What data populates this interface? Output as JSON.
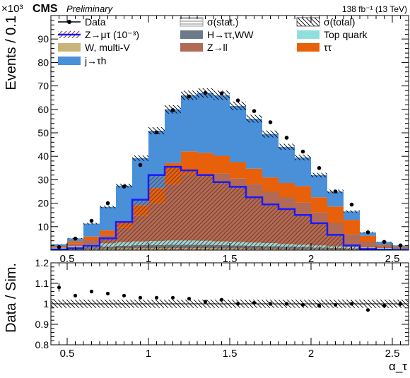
{
  "header": {
    "exponent": "×10³",
    "experiment": "CMS",
    "status": "Preliminary",
    "lumi": "138 fb⁻¹ (13 TeV)"
  },
  "colors": {
    "jtau": "#4a90d9",
    "tautau": "#e8600a",
    "zll": "#b06a55",
    "top": "#90dede",
    "htautau": "#6c7a89",
    "wjets": "#c8b47a",
    "signal": "#1a1aff"
  },
  "chart_data": [
    {
      "type": "bar",
      "subtype": "stacked-histogram",
      "ylabel": "Events / 0.1",
      "xlim": [
        0.4,
        2.6
      ],
      "ylim": [
        0,
        100
      ],
      "yticks": [
        10,
        20,
        30,
        40,
        50,
        60,
        70,
        80,
        90
      ],
      "xticks": [
        0.5,
        1,
        1.5,
        2,
        2.5
      ],
      "x_edges": [
        0.4,
        0.5,
        0.6,
        0.7,
        0.8,
        0.9,
        1.0,
        1.1,
        1.2,
        1.3,
        1.4,
        1.5,
        1.6,
        1.7,
        1.8,
        1.9,
        2.0,
        2.1,
        2.2,
        2.3,
        2.4,
        2.5,
        2.6
      ],
      "legend": [
        {
          "key": "data",
          "label": "Data"
        },
        {
          "key": "stat",
          "label": "σ(stat.)"
        },
        {
          "key": "total",
          "label": "σ(total)"
        },
        {
          "key": "signal",
          "label": "Z→μτ (10⁻³)"
        },
        {
          "key": "htautau",
          "label": "H→ττ,WW"
        },
        {
          "key": "top",
          "label": "Top quark"
        },
        {
          "key": "wjets",
          "label": "W, multi-V"
        },
        {
          "key": "zll",
          "label": "Z→ll"
        },
        {
          "key": "tautau",
          "label": "ττ"
        },
        {
          "key": "jtau",
          "label": "j→τh"
        }
      ],
      "series": [
        {
          "key": "wjets",
          "values": [
            0.2,
            0.3,
            0.5,
            0.6,
            0.7,
            0.8,
            0.8,
            0.8,
            0.8,
            0.8,
            0.7,
            0.7,
            0.6,
            0.6,
            0.5,
            0.4,
            0.4,
            0.3,
            0.3,
            0.2,
            0.2,
            0.1
          ]
        },
        {
          "key": "htautau",
          "values": [
            0.3,
            0.5,
            0.7,
            1.0,
            1.2,
            1.3,
            1.4,
            1.5,
            1.5,
            1.5,
            1.4,
            1.3,
            1.2,
            1.1,
            1.0,
            0.9,
            0.7,
            0.6,
            0.5,
            0.4,
            0.3,
            0.2
          ]
        },
        {
          "key": "top",
          "values": [
            0.5,
            0.8,
            1.0,
            1.3,
            1.5,
            1.6,
            1.7,
            1.8,
            1.8,
            1.7,
            1.6,
            1.5,
            1.4,
            1.3,
            1.1,
            1.0,
            0.9,
            0.7,
            0.6,
            0.5,
            0.4,
            0.3
          ]
        },
        {
          "key": "zll",
          "values": [
            0.5,
            1.2,
            2.0,
            3.5,
            6.0,
            11.0,
            16.0,
            24.0,
            28.0,
            28.0,
            29.0,
            27.0,
            25.0,
            22.0,
            20.0,
            18.0,
            14.0,
            10.0,
            5.5,
            2.5,
            0.6,
            0.3
          ]
        },
        {
          "key": "tautau",
          "values": [
            0.3,
            1.0,
            1.6,
            2.0,
            2.6,
            4.5,
            6.5,
            9.0,
            10.0,
            9.5,
            7.5,
            7.0,
            6.5,
            6.0,
            6.0,
            7.0,
            6.5,
            7.0,
            6.0,
            2.5,
            0.6,
            0.3
          ]
        },
        {
          "key": "jtau",
          "values": [
            0.7,
            1.2,
            5.5,
            10.0,
            15.5,
            20.0,
            24.5,
            22.9,
            23.9,
            25.5,
            25.8,
            24.0,
            21.3,
            18.5,
            15.4,
            12.2,
            9.5,
            6.4,
            3.6,
            1.4,
            1.4,
            0.8
          ]
        }
      ],
      "signal_values": [
        0.3,
        0.8,
        1.8,
        5.0,
        12.0,
        21.5,
        32.0,
        35.5,
        34.0,
        32.0,
        29.0,
        27.0,
        22.5,
        19.5,
        17.5,
        15.0,
        11.5,
        6.5,
        2.0,
        0.5,
        0.2,
        0.1
      ],
      "data_points": {
        "x": [
          0.45,
          0.55,
          0.65,
          0.75,
          0.85,
          0.95,
          1.05,
          1.15,
          1.25,
          1.35,
          1.45,
          1.55,
          1.65,
          1.75,
          1.85,
          1.95,
          2.05,
          2.15,
          2.25,
          2.35,
          2.45,
          2.55
        ],
        "y": [
          1.3,
          4.9,
          12.5,
          20.0,
          27.1,
          36.3,
          50.2,
          59.7,
          65.5,
          67.0,
          66.8,
          63.8,
          59.3,
          54.5,
          47.9,
          42.0,
          35.0,
          25.0,
          19.4,
          7.6,
          3.5,
          2.0
        ]
      }
    },
    {
      "type": "scatter",
      "xlabel": "α_τ",
      "ylabel": "Data / Sim.",
      "xlim": [
        0.4,
        2.6
      ],
      "ylim": [
        0.8,
        1.2
      ],
      "yticks": [
        0.8,
        0.9,
        1.0,
        1.1,
        1.2
      ],
      "ytick_labels": [
        "0.8",
        "0.9",
        "1",
        "1.1",
        "1.2"
      ],
      "xticks": [
        0.5,
        1,
        1.5,
        2,
        2.5
      ],
      "band_half_width": 0.02,
      "x": [
        0.45,
        0.55,
        0.65,
        0.75,
        0.85,
        0.95,
        1.05,
        1.15,
        1.25,
        1.35,
        1.45,
        1.55,
        1.65,
        1.75,
        1.85,
        1.95,
        2.05,
        2.15,
        2.25,
        2.35,
        2.45,
        2.55
      ],
      "y": [
        1.08,
        1.04,
        1.06,
        1.05,
        1.04,
        1.03,
        1.03,
        1.03,
        1.025,
        1.01,
        1.02,
        1.0,
        1.005,
        1.0,
        1.0,
        0.995,
        0.99,
        0.995,
        1.0,
        0.97,
        0.99,
        1.0
      ],
      "yerr": [
        0.02,
        0.006,
        0.006,
        0.006,
        0.005,
        0.005,
        0.005,
        0.005,
        0.005,
        0.005,
        0.005,
        0.005,
        0.005,
        0.005,
        0.005,
        0.005,
        0.005,
        0.006,
        0.006,
        0.008,
        0.01,
        0.012
      ]
    }
  ]
}
